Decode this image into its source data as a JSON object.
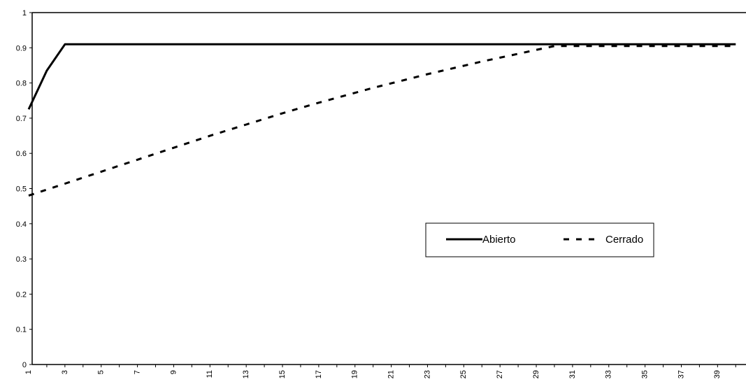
{
  "chart_data": {
    "type": "line",
    "title": "",
    "xlabel": "",
    "ylabel": "",
    "x": [
      1,
      2,
      3,
      4,
      5,
      6,
      7,
      8,
      9,
      10,
      11,
      12,
      13,
      14,
      15,
      16,
      17,
      18,
      19,
      20,
      21,
      22,
      23,
      24,
      25,
      26,
      27,
      28,
      29,
      30,
      31,
      32,
      33,
      34,
      35,
      36,
      37,
      38,
      39,
      40
    ],
    "x_tick_labels": [
      "1",
      "3",
      "5",
      "7",
      "9",
      "11",
      "13",
      "15",
      "17",
      "19",
      "21",
      "23",
      "25",
      "27",
      "29",
      "31",
      "33",
      "35",
      "37",
      "39"
    ],
    "y_tick_labels": [
      "0",
      "0.1",
      "0.2",
      "0.3",
      "0.4",
      "0.5",
      "0.6",
      "0.7",
      "0.8",
      "0.9",
      "1"
    ],
    "ylim": [
      0,
      1
    ],
    "grid": false,
    "legend_position": "right-middle",
    "series": [
      {
        "name": "Abierto",
        "style": "solid",
        "color": "#000000",
        "values": [
          0.725,
          0.835,
          0.91,
          0.91,
          0.91,
          0.91,
          0.91,
          0.91,
          0.91,
          0.91,
          0.91,
          0.91,
          0.91,
          0.91,
          0.91,
          0.91,
          0.91,
          0.91,
          0.91,
          0.91,
          0.91,
          0.91,
          0.91,
          0.91,
          0.91,
          0.91,
          0.91,
          0.91,
          0.91,
          0.91,
          0.91,
          0.91,
          0.91,
          0.91,
          0.91,
          0.91,
          0.91,
          0.91,
          0.91,
          0.91
        ]
      },
      {
        "name": "Cerrado",
        "style": "dashed",
        "color": "#000000",
        "values": [
          0.48,
          0.497,
          0.514,
          0.531,
          0.548,
          0.565,
          0.582,
          0.599,
          0.616,
          0.633,
          0.65,
          0.666,
          0.682,
          0.698,
          0.714,
          0.729,
          0.744,
          0.758,
          0.772,
          0.786,
          0.799,
          0.812,
          0.825,
          0.837,
          0.849,
          0.861,
          0.872,
          0.883,
          0.894,
          0.905,
          0.905,
          0.905,
          0.905,
          0.905,
          0.905,
          0.905,
          0.905,
          0.905,
          0.905,
          0.905
        ]
      }
    ]
  }
}
